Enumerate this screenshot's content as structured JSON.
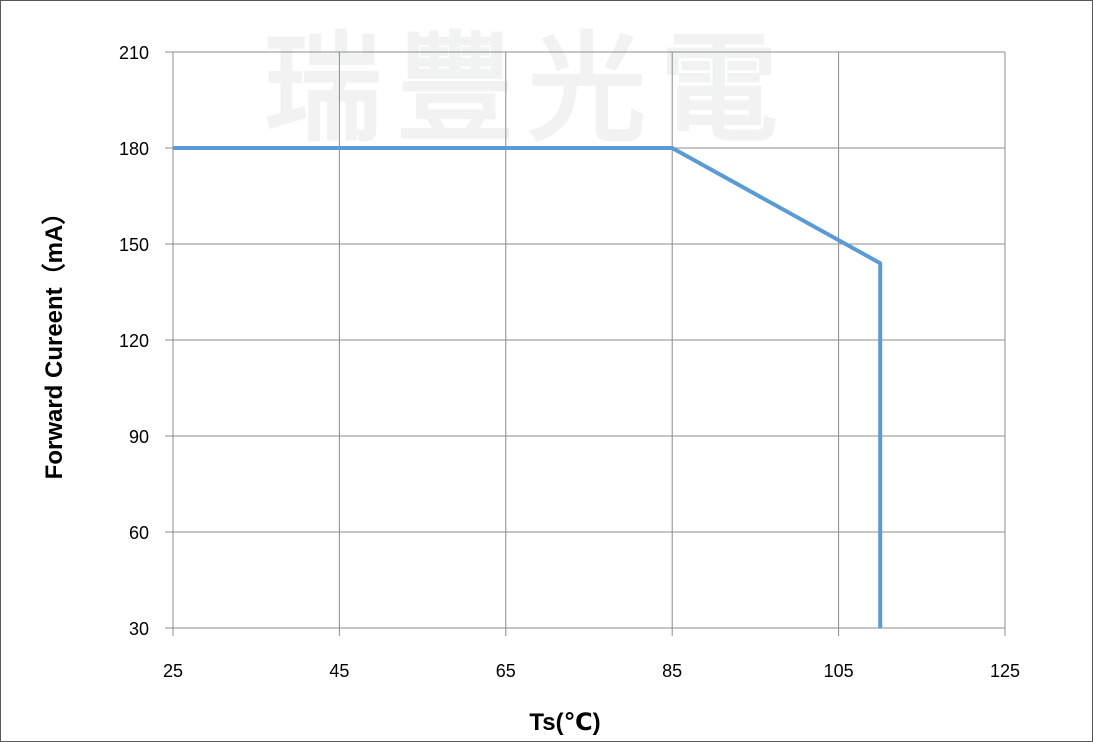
{
  "chart_data": {
    "type": "line",
    "title": "",
    "xlabel": "Ts(℃)",
    "ylabel": "Forward Cureent（mA）",
    "xlim": [
      25,
      125
    ],
    "ylim": [
      30,
      210
    ],
    "xticks": [
      25,
      45,
      65,
      85,
      105,
      125
    ],
    "yticks": [
      30,
      60,
      90,
      120,
      150,
      180,
      210
    ],
    "grid": true,
    "legend": "none",
    "watermark": "瑞豐光電",
    "series": [
      {
        "color": "#5b9bd5",
        "x": [
          25,
          85,
          110,
          110
        ],
        "y": [
          180,
          180,
          144,
          30
        ]
      }
    ]
  }
}
